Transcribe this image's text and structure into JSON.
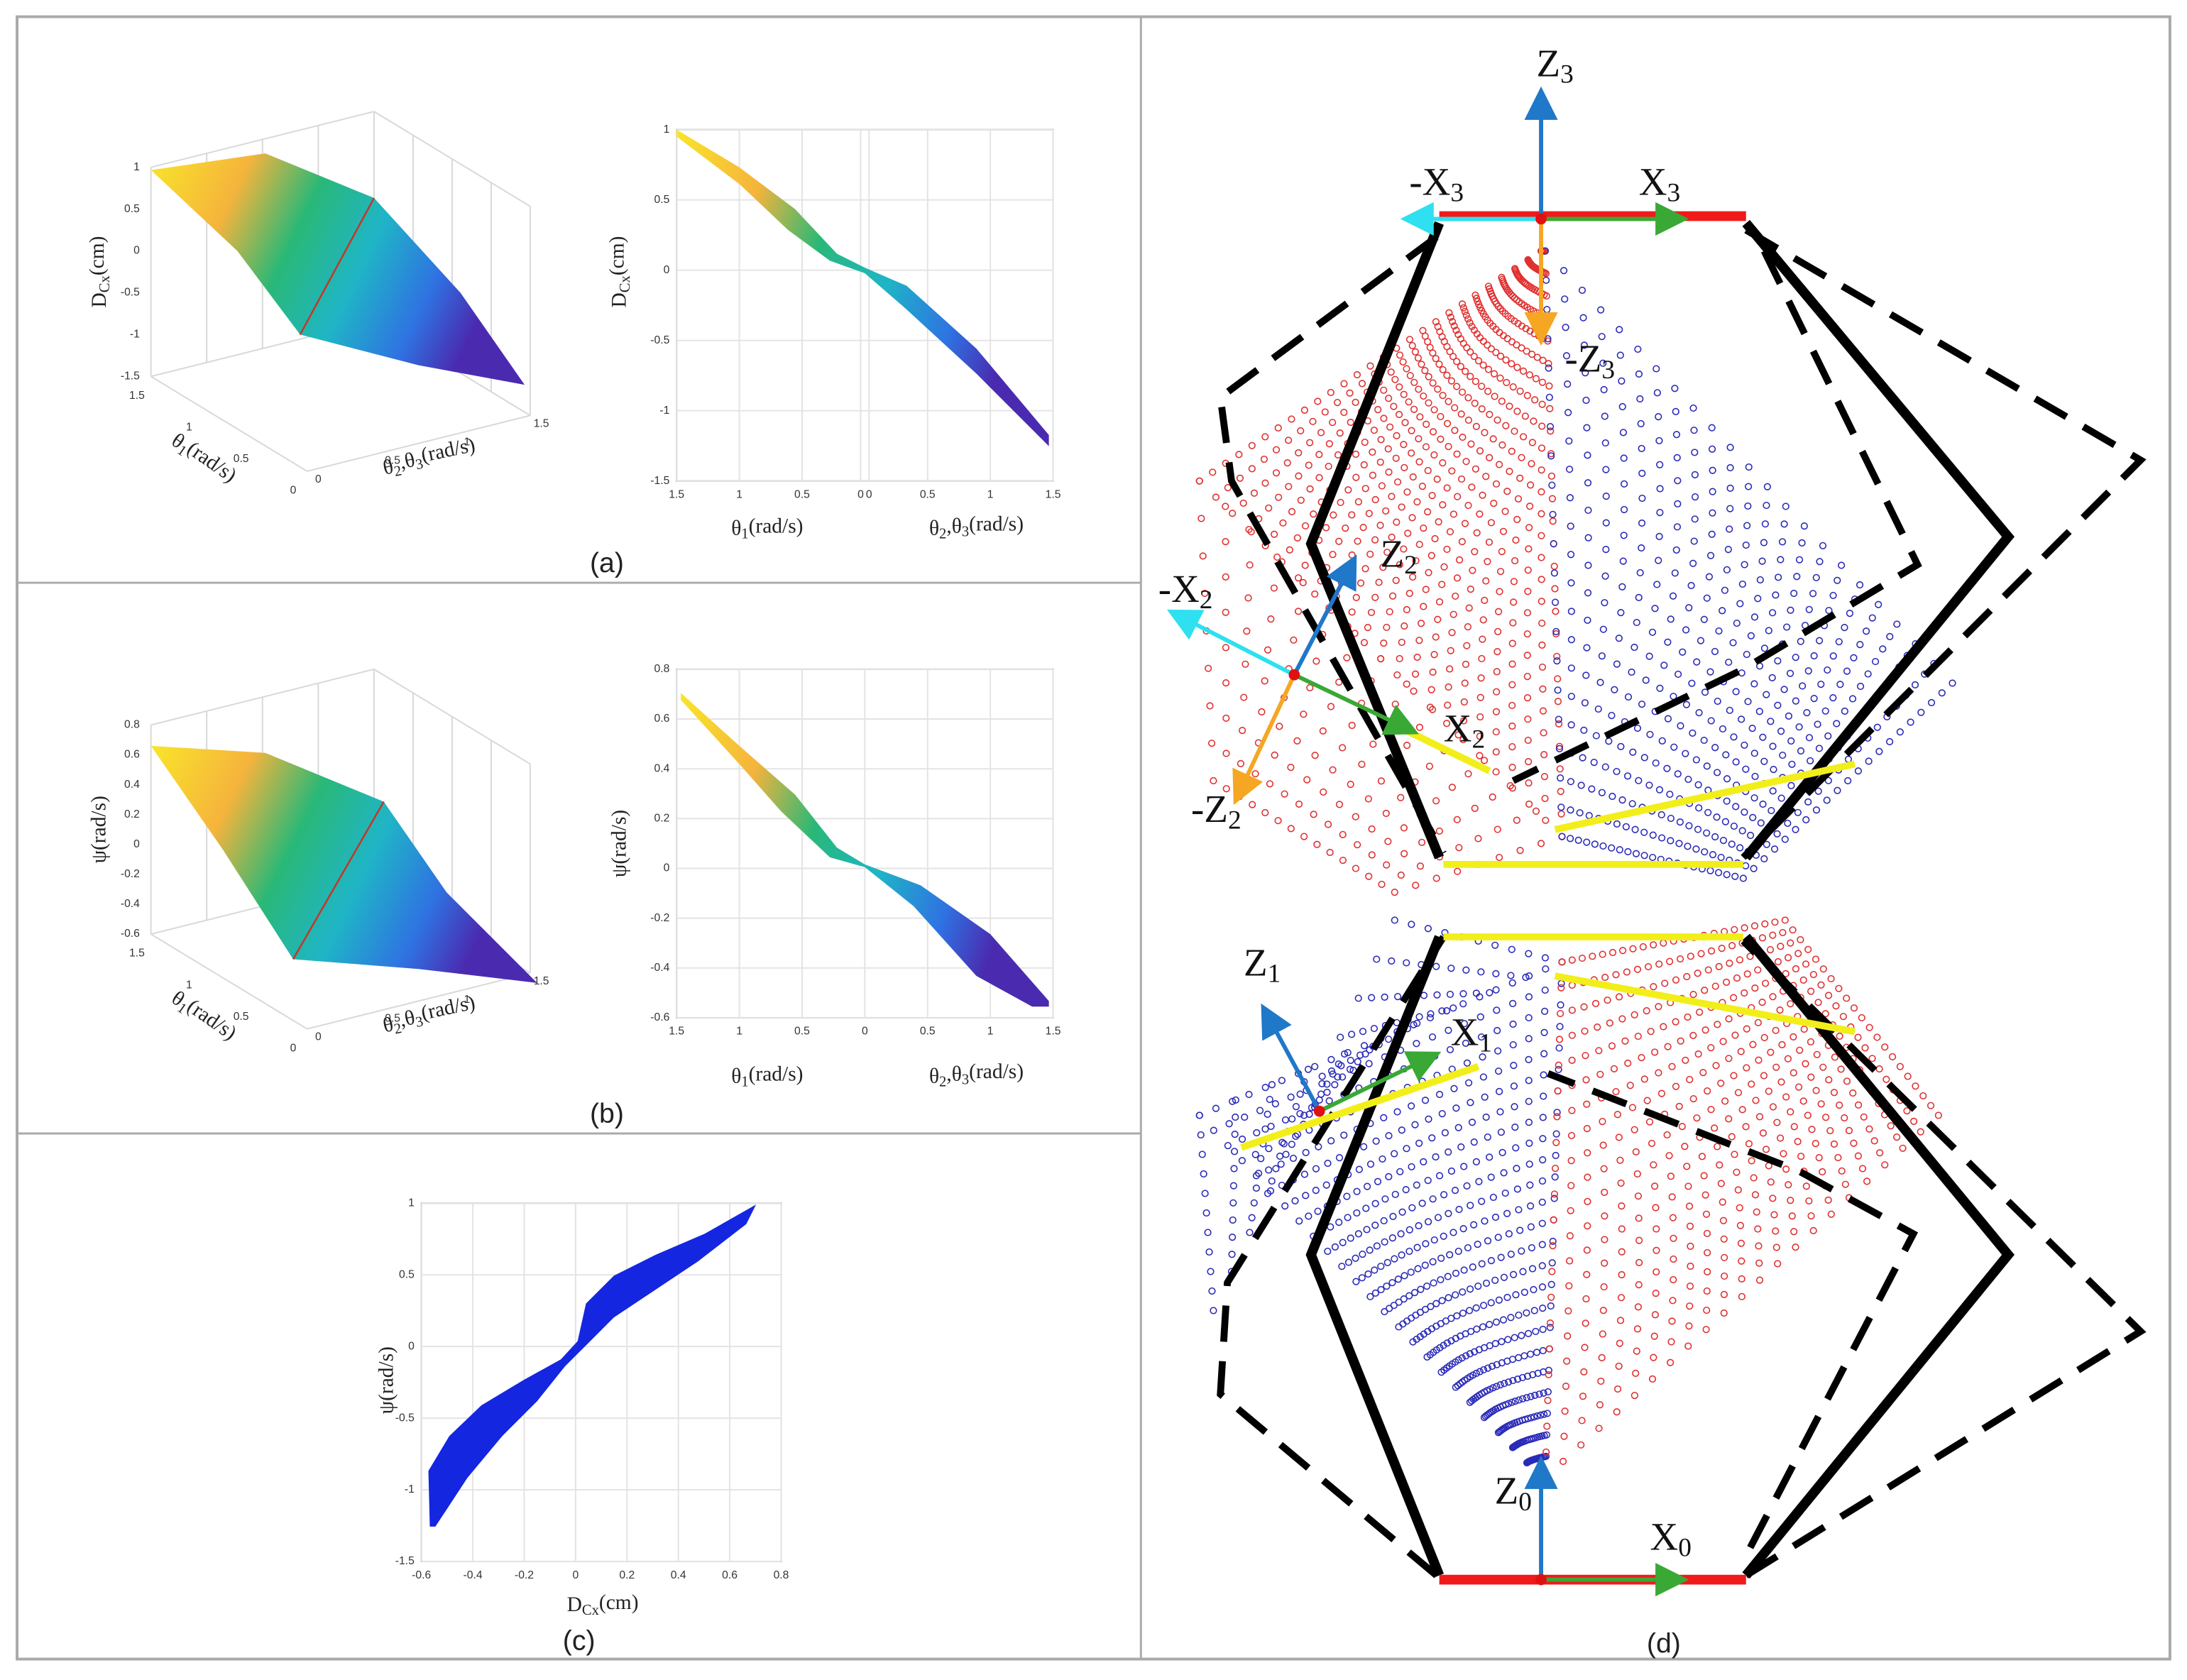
{
  "labels": {
    "dcx": {
      "main": "D",
      "sub": "Cx",
      "unit": "(cm)"
    },
    "theta1": {
      "main": "θ",
      "sub": "1",
      "unit": "(rad/s)"
    },
    "theta23": {
      "main": "θ",
      "sub": "2",
      "mid": ",θ",
      "sub2": "3",
      "unit": "(rad/s)"
    },
    "psi": "ψ(rad/s)"
  },
  "panel_a": {
    "caption": "(a)",
    "surface_zticks": [
      1,
      0.5,
      0,
      -0.5,
      -1,
      -1.5
    ],
    "surface_yticks": [
      1.5,
      1,
      0.5,
      0
    ],
    "surface_xticks": [
      0,
      0.5,
      1,
      1.5
    ],
    "plot_yticks": [
      1,
      0.5,
      0,
      -0.5,
      -1,
      -1.5
    ],
    "plot_xticks": [
      1.5,
      1,
      0.5,
      0,
      0,
      0.5,
      1,
      1.5
    ]
  },
  "panel_b": {
    "caption": "(b)",
    "surface_zticks": [
      0.8,
      0.6,
      0.4,
      0.2,
      0,
      -0.2,
      -0.4,
      -0.6
    ],
    "surface_yticks": [
      1.5,
      1,
      0.5,
      0
    ],
    "surface_xticks": [
      0,
      0.5,
      1,
      1.5
    ],
    "plot_yticks": [
      0.8,
      0.6,
      0.4,
      0.2,
      0,
      -0.2,
      -0.4,
      -0.6
    ],
    "plot_xticks": [
      1.5,
      1,
      0.5,
      0,
      0.5,
      1,
      1.5
    ]
  },
  "panel_c": {
    "caption": "(c)",
    "xticks": [
      -0.6,
      -0.4,
      -0.2,
      0,
      0.2,
      0.4,
      0.6,
      0.8
    ],
    "yticks": [
      1,
      0.5,
      0,
      -0.5,
      -1,
      -1.5
    ]
  },
  "panel_d": {
    "caption": "(d)",
    "frames": [
      {
        "main": "Z",
        "sub": "3"
      },
      {
        "main": "-X",
        "sub": "3"
      },
      {
        "main": "X",
        "sub": "3"
      },
      {
        "main": "-Z",
        "sub": "3"
      },
      {
        "main": "Z",
        "sub": "2"
      },
      {
        "main": "-X",
        "sub": "2"
      },
      {
        "main": "X",
        "sub": "2"
      },
      {
        "main": "-Z",
        "sub": "2"
      },
      {
        "main": "Z",
        "sub": "1"
      },
      {
        "main": "X",
        "sub": "1"
      },
      {
        "main": "Z",
        "sub": "0"
      },
      {
        "main": "X",
        "sub": "0"
      }
    ]
  }
}
